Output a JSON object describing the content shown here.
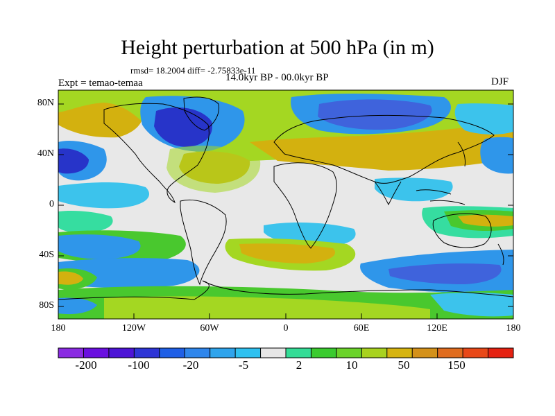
{
  "title": "Height perturbation at 500 hPa (in m)",
  "stats": "rmsd= 18.2004 diff= -2.75833e-11",
  "experiment": "Expt = temao-temaa",
  "period": "14.0kyr BP - 00.0kyr BP",
  "season": "DJF",
  "lat_labels": [
    "80N",
    "40N",
    "0",
    "40S",
    "80S"
  ],
  "lon_labels": [
    "180",
    "120W",
    "60W",
    "0",
    "60E",
    "120E",
    "180"
  ],
  "colorbar": {
    "colors": [
      "#8a2be2",
      "#6a0fe0",
      "#4d14d6",
      "#2e35d6",
      "#1f5fe6",
      "#2f86ec",
      "#2fa4ec",
      "#2fc1f0",
      "#e6e6e6",
      "#34dc96",
      "#3acb2f",
      "#6bd32a",
      "#a8d21f",
      "#d6b410",
      "#d4911a",
      "#e06c1e",
      "#e84818",
      "#e52212"
    ],
    "labels": [
      "-200",
      "-100",
      "-20",
      "-5",
      "2",
      "10",
      "50",
      "150"
    ]
  },
  "field_colors": {
    "deep_blue": "#2734c9",
    "mid_blue": "#3f63dc",
    "light_blue": "#2f96ea",
    "cyan": "#3cc3ec",
    "gray": "#e8e8e8",
    "teal": "#36dda0",
    "green": "#49c82e",
    "lime": "#a4d722",
    "ochre": "#d3b10f"
  }
}
